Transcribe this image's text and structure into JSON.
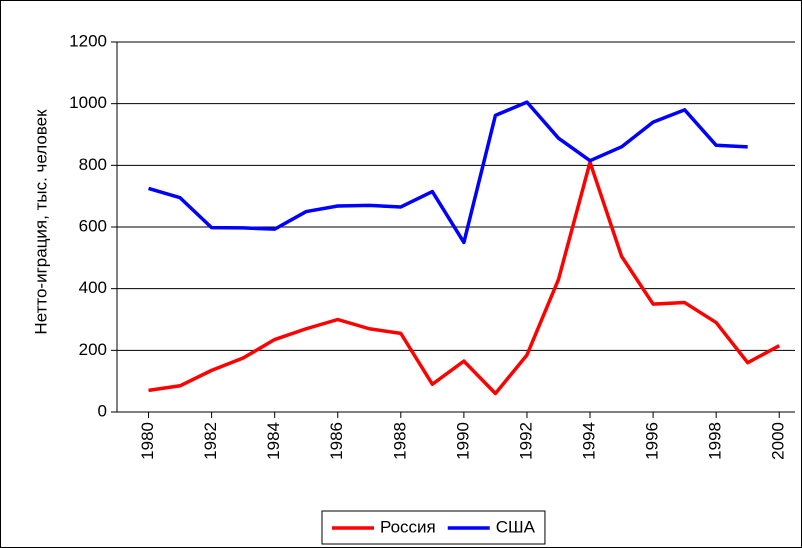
{
  "chart_data": {
    "type": "line",
    "y_label": "Нетто-играция, тыс. человек",
    "x": [
      1980,
      1981,
      1982,
      1983,
      1984,
      1985,
      1986,
      1987,
      1988,
      1989,
      1990,
      1991,
      1992,
      1993,
      1994,
      1995,
      1996,
      1997,
      1998,
      1999,
      2000
    ],
    "series": [
      {
        "name": "Россия",
        "color": "#ff0000",
        "values": [
          70,
          85,
          135,
          175,
          235,
          270,
          300,
          270,
          255,
          90,
          165,
          60,
          185,
          430,
          810,
          505,
          350,
          355,
          290,
          160,
          215
        ]
      },
      {
        "name": "США",
        "color": "#0000ff",
        "values": [
          725,
          695,
          598,
          597,
          593,
          650,
          668,
          670,
          665,
          715,
          550,
          962,
          1005,
          888,
          815,
          860,
          940,
          980,
          865,
          860,
          null
        ]
      }
    ],
    "xlim": [
      1979,
      2000.5
    ],
    "xticks": [
      1980,
      1982,
      1984,
      1986,
      1988,
      1990,
      1992,
      1994,
      1996,
      1998,
      2000
    ],
    "ylim": [
      0,
      1200
    ],
    "yticks": [
      0,
      200,
      400,
      600,
      800,
      1000,
      1200
    ],
    "grid": true,
    "legend": "bottom"
  }
}
